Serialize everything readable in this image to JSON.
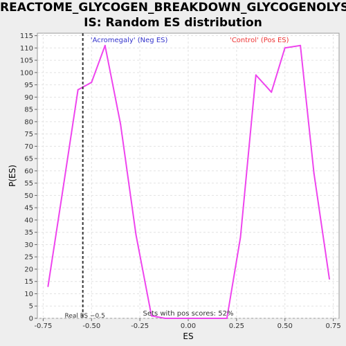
{
  "chart_data": {
    "type": "line",
    "title_lines": [
      "REACTOME_GLYCOGEN_BREAKDOWN_GLYCOGENOLYS",
      "IS: Random ES distribution"
    ],
    "xlabel": "ES",
    "ylabel": "P(ES)",
    "xlim": [
      -0.78,
      0.78
    ],
    "ylim": [
      0,
      116
    ],
    "xticks": [
      -0.75,
      -0.5,
      -0.25,
      0.0,
      0.25,
      0.5,
      0.75
    ],
    "xtick_labels": [
      "-0.75",
      "-0.50",
      "-0.25",
      "0.00",
      "0.25",
      "0.50",
      "0.75"
    ],
    "yticks": [
      0,
      5,
      10,
      15,
      20,
      25,
      30,
      35,
      40,
      45,
      50,
      55,
      60,
      65,
      70,
      75,
      80,
      85,
      90,
      95,
      100,
      105,
      110,
      115
    ],
    "grid": true,
    "series": [
      {
        "color": "#ee44ee",
        "x": [
          -0.725,
          -0.647,
          -0.57,
          -0.5,
          -0.43,
          -0.35,
          -0.27,
          -0.19,
          -0.12,
          0.2,
          0.27,
          0.35,
          0.43,
          0.5,
          0.58,
          0.65,
          0.73
        ],
        "y": [
          13,
          53,
          93,
          96,
          111,
          79,
          34,
          1,
          0,
          0,
          33,
          99,
          92,
          110,
          111,
          59,
          16
        ]
      }
    ],
    "vline": {
      "x": -0.545,
      "label": "Real ES −0.5",
      "color": "#333333"
    },
    "annotations": {
      "neg": {
        "text": "'Acromegaly' (Neg ES)",
        "color": "#3333cc"
      },
      "pos": {
        "text": "'Control' (Pos ES)",
        "color": "#ee3333"
      },
      "bottom": {
        "text": "Sets with pos scores: 52%",
        "color": "#333333"
      }
    }
  }
}
